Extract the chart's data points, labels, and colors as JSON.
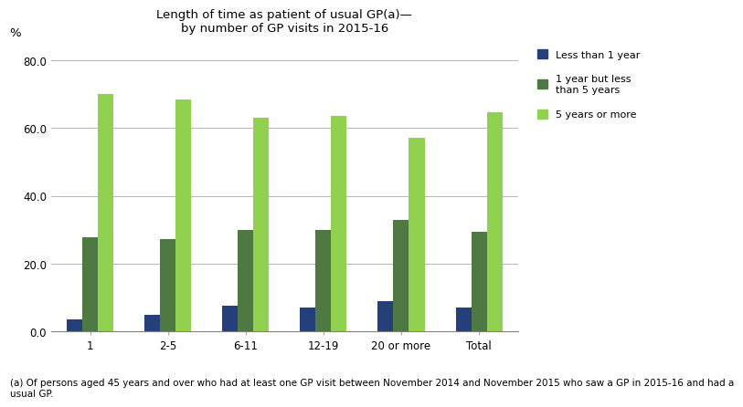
{
  "title_line1": "Length of time as patient of usual GP(a)—",
  "title_line2": "by number of GP visits in 2015-16",
  "ylabel": "%",
  "categories": [
    "1",
    "2-5",
    "6-11",
    "12-19",
    "20 or more",
    "Total"
  ],
  "series": [
    {
      "label": "Less than 1 year",
      "color": "#243F7A",
      "values": [
        3.5,
        5.0,
        7.5,
        7.0,
        9.0,
        7.0
      ]
    },
    {
      "label": "1 year but less\nthan 5 years",
      "color": "#4F7942",
      "values": [
        27.8,
        27.3,
        30.0,
        30.0,
        33.0,
        29.5
      ]
    },
    {
      "label": "5 years or more",
      "color": "#92D050",
      "values": [
        70.0,
        68.5,
        63.0,
        63.5,
        57.0,
        64.5
      ]
    }
  ],
  "ylim": [
    0,
    83
  ],
  "yticks": [
    0.0,
    20.0,
    40.0,
    60.0,
    80.0
  ],
  "footnote": "(a) Of persons aged 45 years and over who had at least one GP visit between November 2014 and November 2015 who saw a GP in 2015-16 and had a\nusual GP.",
  "background_color": "#ffffff",
  "grid_color": "#aaaaaa",
  "title_fontsize": 9.5,
  "axis_fontsize": 8.5,
  "legend_fontsize": 8,
  "footnote_fontsize": 7.5,
  "bar_width": 0.2,
  "group_width": 1.0
}
